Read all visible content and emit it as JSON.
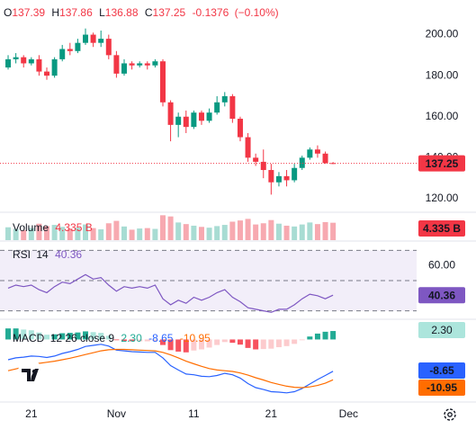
{
  "chart_data": [
    {
      "type": "candlestick",
      "ohlc_keys": [
        "O",
        "H",
        "L",
        "C"
      ],
      "open": [
        184,
        188,
        189,
        186,
        188,
        182,
        180,
        188,
        193,
        192,
        196,
        200,
        196,
        198,
        190,
        181,
        186,
        185,
        186,
        185,
        187,
        167,
        156,
        160,
        155,
        162,
        158,
        162,
        167,
        170,
        159,
        150,
        140,
        138,
        134,
        128,
        131,
        129,
        135,
        140,
        144,
        142,
        137.39
      ],
      "high": [
        190,
        191,
        190,
        189,
        190,
        184,
        189,
        195,
        196,
        198,
        203,
        201,
        202,
        200,
        192,
        188,
        187,
        187,
        187,
        188,
        188,
        168,
        162,
        163,
        163,
        163,
        164,
        170,
        172,
        171,
        160,
        152,
        142,
        144,
        137,
        133,
        134,
        137,
        141,
        145,
        146,
        143,
        137.86
      ],
      "low": [
        183,
        186,
        184,
        185,
        180,
        178,
        179,
        187,
        190,
        191,
        195,
        194,
        194,
        188,
        179,
        180,
        183,
        184,
        183,
        184,
        165,
        148,
        150,
        152,
        154,
        156,
        157,
        161,
        165,
        157,
        148,
        138,
        136,
        130,
        122,
        126,
        126,
        128,
        134,
        139,
        140,
        137,
        136.88
      ],
      "close": [
        188,
        189,
        186,
        188,
        182,
        180,
        188,
        193,
        192,
        196,
        200,
        196,
        198,
        190,
        181,
        186,
        185,
        186,
        185,
        187,
        167,
        156,
        160,
        155,
        162,
        158,
        162,
        167,
        170,
        159,
        150,
        140,
        138,
        134,
        128,
        131,
        129,
        135,
        140,
        144,
        142,
        137.39,
        137.25
      ],
      "change": -0.1376,
      "change_percent": {
        "value": -0.1,
        "label": "(−0.10%)"
      },
      "up_color": "#089981",
      "down_color": "#f23645",
      "ylim": [
        113.4,
        216.9
      ],
      "yticks": [
        {
          "value": 120,
          "label": "120.00"
        },
        {
          "value": 140,
          "label": "140.00"
        },
        {
          "value": 160,
          "label": "160.00"
        },
        {
          "value": 180,
          "label": "180.00"
        },
        {
          "value": 200,
          "label": "200.00"
        }
      ],
      "xlim": [
        -1.05,
        52.8
      ],
      "xticks": [
        {
          "value": 3,
          "label": "21"
        },
        {
          "value": 14,
          "label": "Nov"
        },
        {
          "value": 24,
          "label": "11"
        },
        {
          "value": 34,
          "label": "21"
        },
        {
          "value": 44,
          "label": "Dec"
        }
      ]
    },
    {
      "type": "bar",
      "name": "Volume",
      "values": [
        3.2,
        2.8,
        2.5,
        3.0,
        4.1,
        3.5,
        3.8,
        3.3,
        2.9,
        3.1,
        3.9,
        3.0,
        2.7,
        4.2,
        4.8,
        3.4,
        2.6,
        2.9,
        3.0,
        2.8,
        6.2,
        5.9,
        4.4,
        4.0,
        3.6,
        3.3,
        3.1,
        3.5,
        3.8,
        4.6,
        4.9,
        5.3,
        3.9,
        4.2,
        5.0,
        4.1,
        3.6,
        3.4,
        3.9,
        4.4,
        4.0,
        4.5,
        4.335
      ],
      "value_label": "4.335 B",
      "up_color": "#a8dcd3",
      "down_color": "#f7a9b0",
      "ylim": [
        0,
        6.5
      ]
    },
    {
      "type": "line",
      "name": "RSI",
      "params": "14",
      "values": [
        45,
        47,
        46,
        47,
        44,
        42,
        46,
        49,
        48,
        51,
        54,
        51,
        52,
        47,
        43,
        46,
        45,
        46,
        45,
        47,
        38,
        34,
        37,
        35,
        39,
        37,
        39,
        42,
        44,
        39,
        36,
        32,
        31,
        30,
        29,
        31,
        31,
        34,
        38,
        41,
        40,
        38,
        40.36
      ],
      "color": "#7e57c2",
      "levels": [
        70,
        50,
        30
      ],
      "ylim": [
        25,
        75
      ],
      "yticks": [
        {
          "value": 60,
          "label": "60.00"
        }
      ]
    },
    {
      "type": "macd",
      "name": "MACD",
      "params": "12 26 close 9",
      "ylim": [
        -17,
        5
      ],
      "series": [
        {
          "type": "bar",
          "values": [
            3.0,
            3.0,
            2.7,
            2.5,
            1.9,
            1.3,
            1.4,
            1.7,
            1.8,
            1.9,
            2.2,
            2.0,
            1.8,
            1.0,
            -0.2,
            -0.4,
            -0.5,
            -0.5,
            -0.5,
            -0.4,
            -1.5,
            -2.9,
            -3.3,
            -3.5,
            -3.0,
            -2.7,
            -2.2,
            -1.5,
            -0.7,
            -0.9,
            -1.4,
            -2.3,
            -2.7,
            -2.6,
            -2.5,
            -2.1,
            -1.8,
            -1.2,
            -0.2,
            0.8,
            1.6,
            2.1,
            2.3
          ],
          "value_label": "2.30",
          "color": "#22ab94",
          "colors": [
            "#22ab94",
            "#ace5dc",
            "#f7525f",
            "#fccbcd"
          ]
        },
        {
          "type": "line",
          "color": "#2962ff",
          "values": [
            -5.5,
            -5.0,
            -4.8,
            -4.5,
            -4.6,
            -4.9,
            -4.5,
            -3.8,
            -3.3,
            -2.7,
            -1.9,
            -1.6,
            -1.3,
            -1.8,
            -2.9,
            -3.1,
            -3.3,
            -3.4,
            -3.5,
            -3.5,
            -5.0,
            -7.1,
            -8.3,
            -9.4,
            -9.6,
            -10.0,
            -10.1,
            -9.8,
            -9.2,
            -9.6,
            -10.5,
            -12.0,
            -13.1,
            -13.6,
            -14.2,
            -14.3,
            -14.5,
            -14.2,
            -13.3,
            -12.1,
            -10.9,
            -9.8,
            -8.65
          ]
        },
        {
          "type": "line",
          "color": "#ff6d00",
          "values": [
            -8.5,
            -8.0,
            -7.5,
            -7.0,
            -6.5,
            -6.2,
            -5.9,
            -5.5,
            -5.1,
            -4.6,
            -4.1,
            -3.6,
            -3.1,
            -2.8,
            -2.7,
            -2.7,
            -2.8,
            -2.9,
            -3.0,
            -3.1,
            -3.5,
            -4.2,
            -5.0,
            -5.9,
            -6.6,
            -7.3,
            -7.9,
            -8.3,
            -8.5,
            -8.7,
            -9.1,
            -9.7,
            -10.4,
            -11.0,
            -11.7,
            -12.2,
            -12.7,
            -13.0,
            -13.1,
            -12.9,
            -12.5,
            -11.9,
            -10.95
          ]
        }
      ]
    }
  ]
}
